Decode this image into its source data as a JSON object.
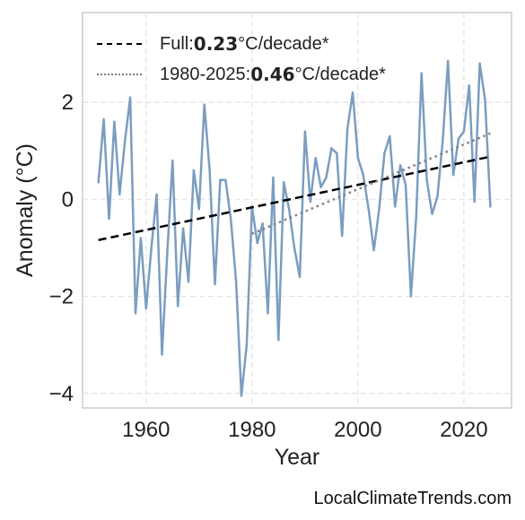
{
  "chart_data": {
    "type": "line",
    "xlabel": "Year",
    "ylabel": "Anomaly (°C)",
    "xlim": [
      1948,
      2029
    ],
    "ylim": [
      -4.3,
      3.85
    ],
    "xticks": [
      1960,
      1980,
      2000,
      2020
    ],
    "yticks": [
      -4,
      -2,
      0,
      2
    ],
    "ytick_labels": [
      "−4",
      "−2",
      "0",
      "2"
    ],
    "grid": true,
    "legend_position": "top-left",
    "x": [
      1951,
      1952,
      1953,
      1954,
      1955,
      1956,
      1957,
      1958,
      1959,
      1960,
      1961,
      1962,
      1963,
      1964,
      1965,
      1966,
      1967,
      1968,
      1969,
      1970,
      1971,
      1972,
      1973,
      1974,
      1975,
      1976,
      1977,
      1978,
      1979,
      1980,
      1981,
      1982,
      1983,
      1984,
      1985,
      1986,
      1987,
      1988,
      1989,
      1990,
      1991,
      1992,
      1993,
      1994,
      1995,
      1996,
      1997,
      1998,
      1999,
      2000,
      2001,
      2002,
      2003,
      2004,
      2005,
      2006,
      2007,
      2008,
      2009,
      2010,
      2011,
      2012,
      2013,
      2014,
      2015,
      2016,
      2017,
      2018,
      2019,
      2020,
      2021,
      2022,
      2023,
      2024,
      2025
    ],
    "series": [
      {
        "values": [
          0.35,
          1.65,
          -0.4,
          1.6,
          0.1,
          1.2,
          2.1,
          -2.35,
          -0.8,
          -2.25,
          -1.0,
          0.1,
          -3.2,
          -1.1,
          0.8,
          -2.2,
          -0.6,
          -1.7,
          0.6,
          -0.2,
          1.95,
          0.6,
          -1.75,
          0.4,
          0.4,
          -0.4,
          -1.7,
          -4.05,
          -3.0,
          -0.15,
          -0.9,
          -0.5,
          -2.35,
          0.45,
          -2.9,
          0.35,
          -0.2,
          -1.0,
          -1.6,
          1.4,
          -0.05,
          0.85,
          0.25,
          0.45,
          1.05,
          0.95,
          -0.75,
          1.45,
          2.2,
          0.85,
          0.5,
          -0.2,
          -1.05,
          -0.2,
          0.95,
          1.3,
          -0.15,
          0.7,
          0.3,
          -2.0,
          -0.35,
          2.6,
          0.4,
          -0.3,
          0.05,
          1.2,
          2.85,
          0.5,
          1.25,
          1.4,
          2.35,
          -0.05,
          2.8,
          2.05,
          -0.15
        ],
        "color": "#7b9dc0"
      }
    ],
    "trends": [
      {
        "label_prefix": "Full: ",
        "rate": "0.23",
        "unit": "°C/decade*",
        "start": [
          1951,
          -0.84
        ],
        "end": [
          2025,
          0.88
        ],
        "color": "#000000",
        "style": "dashed"
      },
      {
        "label_prefix": "1980-2025: ",
        "rate": "0.46",
        "unit": "°C/decade*",
        "start": [
          1980,
          -0.71
        ],
        "end": [
          2025,
          1.36
        ],
        "color": "#808080",
        "style": "dotted"
      }
    ]
  },
  "watermark": "LocalClimateTrends.com"
}
